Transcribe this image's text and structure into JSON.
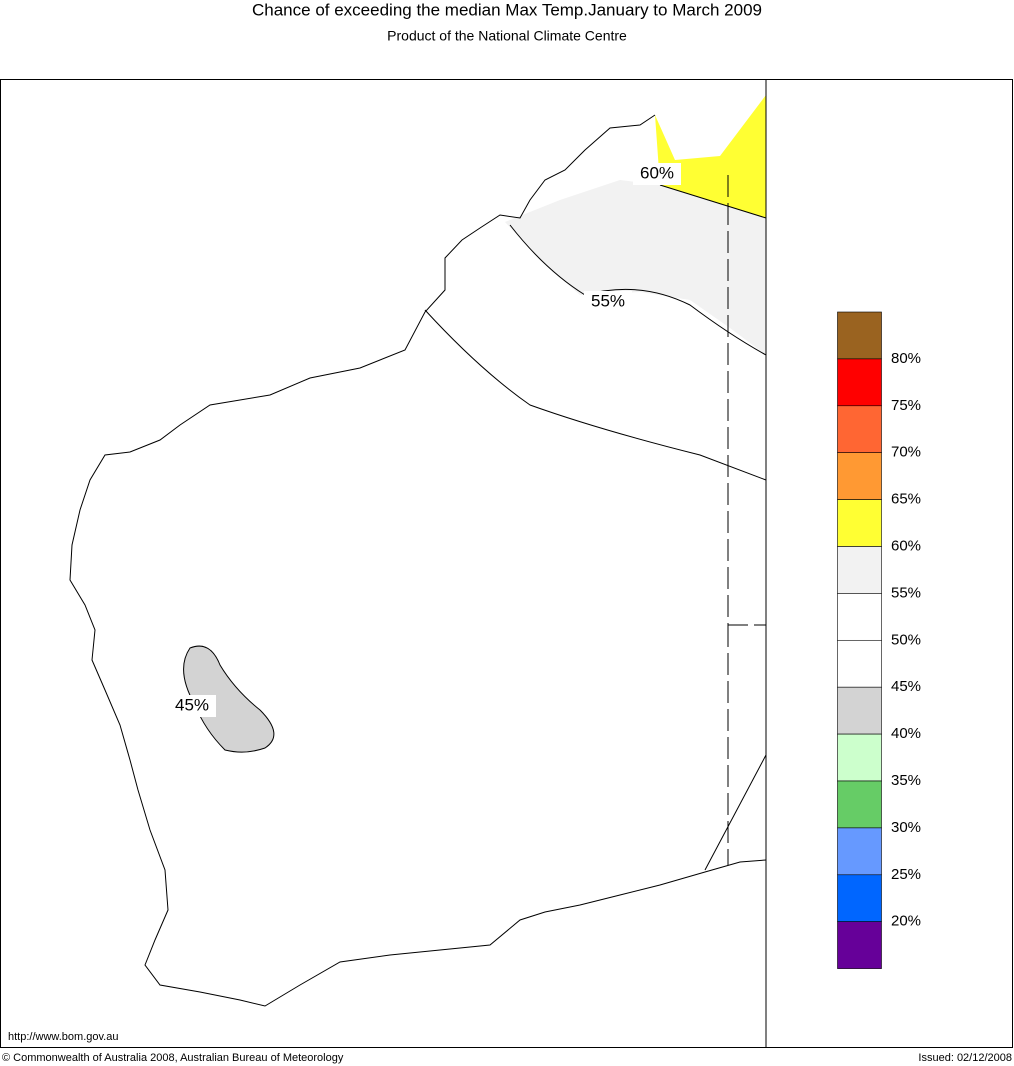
{
  "header": {
    "title": "Chance of exceeding the median Max Temp.January to March 2009",
    "subtitle": "Product of the National Climate Centre"
  },
  "map": {
    "contour_labels": [
      "60%",
      "55%",
      "45%"
    ]
  },
  "legend": {
    "colors": [
      "#9a6320",
      "#ff0000",
      "#ff6633",
      "#ff9933",
      "#ffff33",
      "#f2f2f2",
      "#ffffff",
      "#ffffff",
      "#d3d3d3",
      "#ccffcc",
      "#66cc66",
      "#6699ff",
      "#0066ff",
      "#660099"
    ],
    "labels": [
      "80%",
      "75%",
      "70%",
      "65%",
      "60%",
      "55%",
      "50%",
      "45%",
      "40%",
      "35%",
      "30%",
      "25%",
      "20%"
    ]
  },
  "footer": {
    "url": "http://www.bom.gov.au",
    "copyright": "© Commonwealth of Australia 2008, Australian Bureau of Meteorology",
    "issued": "Issued: 02/12/2008"
  }
}
